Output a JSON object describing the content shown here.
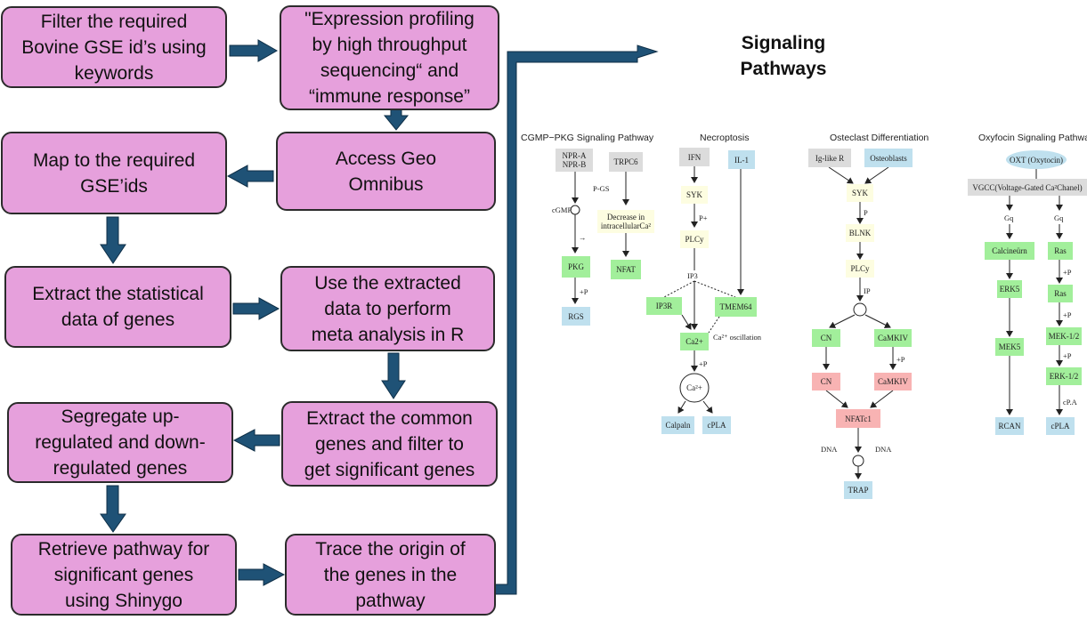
{
  "flow": {
    "filter": "Filter the required\nBovine GSE id’s using\nkeywords",
    "expression": "\"Expression profiling\nby high throughput\nsequencing“ and\n“immune response”",
    "access": "Access Geo\nOmnibus",
    "map": "Map to the required\nGSE’ids",
    "extract_stat": "Extract the statistical\ndata of genes",
    "meta": "Use the extracted\ndata to perform\nmeta analysis in R",
    "common": "Extract the common\ngenes and filter to\nget significant genes",
    "segregate": "Segregate up-\nregulated and down-\nregulated genes",
    "retrieve": "Retrieve pathway for\nsignificant genes\nusing Shinygo",
    "trace": "Trace the origin of\nthe genes in the\npathway"
  },
  "signaling_title": "Signaling\nPathways",
  "pathways": {
    "cgmp": {
      "title": "CGMP−PKG Signaling Pathway",
      "nodes": {
        "npr": "NPR-A\nNPR-B",
        "trpc6": "TRPC6",
        "pkg": "PKG",
        "rgs": "RGS",
        "decrease": "Decrease in\nintracellularCa²",
        "nfat": "NFAT"
      },
      "labels": {
        "cgmp": "cGMP",
        "pgs": "P-GS",
        "arrow": "→",
        "p": "+P"
      }
    },
    "necroptosis": {
      "title": "Necroptosis",
      "nodes": {
        "ifn": "IFN",
        "il1": "IL-1",
        "syk": "SYK",
        "plcy": "PLCy",
        "ip3r": "IP3R",
        "tmem64": "TMEM64",
        "ca2": "Ca2+",
        "ca_circle": "Ca²+",
        "calpain": "Calpaln",
        "cpla": "cPLA"
      },
      "labels": {
        "p": "P+",
        "ip3": "IP3",
        "osc": "Ca²⁺ oscillation",
        "p2": "+P"
      }
    },
    "osteoclast": {
      "title": "Osteclast Differentiation",
      "nodes": {
        "iglike": "Ig-like R",
        "osteoblasts": "Osteoblasts",
        "syk": "SYK",
        "blnk": "BLNK",
        "plcy": "PLCy",
        "cn1": "CN",
        "camkiv1": "CaMKIV",
        "cn2": "CN",
        "camkiv2": "CaMKIV",
        "nfatc1": "NFATc1",
        "trap": "TRAP"
      },
      "labels": {
        "p": "P",
        "ip": "IP",
        "p2": "+P",
        "dna1": "DNA",
        "dna2": "DNA"
      }
    },
    "oxytocin": {
      "title": "Oxyfocin Signaling Pathwa",
      "nodes": {
        "oxt": "OXT (Oxytocin)",
        "vgcc": "VGCC(Voltage-Gated Ca²Chanel)",
        "calcineurin": "Calcineürn",
        "erk5": "ERK5",
        "mek5": "MEK5",
        "rcan": "RCAN",
        "ras1": "Ras",
        "ras2": "Ras",
        "mek12": "MEK-1/2",
        "erk12": "ERK-1/2",
        "cpla": "cPLA"
      },
      "labels": {
        "gq1": "Gq",
        "gq2": "Gq",
        "p1": "+P",
        "p2": "+P",
        "p3": "+P",
        "cpa": "cP.A"
      }
    }
  },
  "colors": {
    "box_fill": "#e6a0dc",
    "arrow": "#1f5276",
    "green": "#a2ef9b",
    "blue": "#bfe0ee",
    "gray": "#dcdcdc",
    "pink": "#f8b3b3",
    "yellow": "#fdfde1"
  }
}
